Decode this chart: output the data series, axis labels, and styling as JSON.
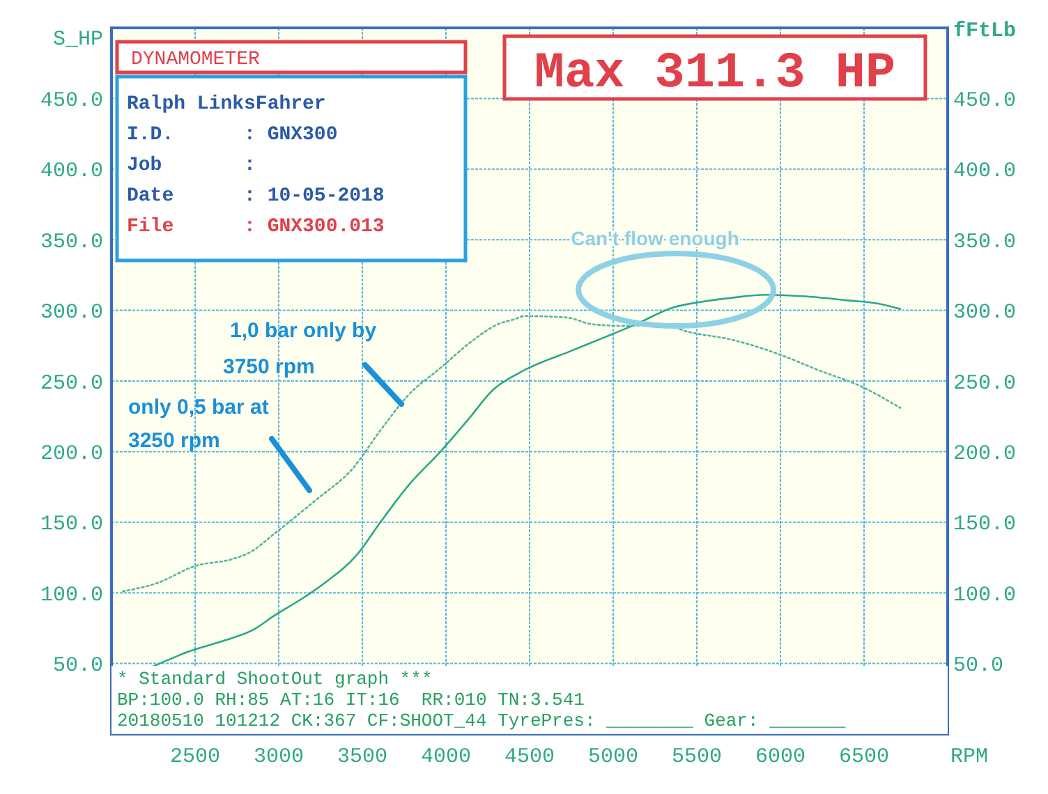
{
  "chart_data": {
    "type": "line",
    "xlabel": "RPM",
    "ylabel": "S_HP",
    "y2label": "fFtLb",
    "xlim": [
      2000,
      7000
    ],
    "xticks": [
      2500,
      3000,
      3500,
      4000,
      4500,
      5000,
      5500,
      6000,
      6500
    ],
    "ylim": [
      0,
      500
    ],
    "yticks": [
      {
        "value": 50,
        "label": "50.0"
      },
      {
        "value": 100,
        "label": "100.0"
      },
      {
        "value": 150,
        "label": "150.0"
      },
      {
        "value": 200,
        "label": "200.0"
      },
      {
        "value": 250,
        "label": "250.0"
      },
      {
        "value": 300,
        "label": "300.0"
      },
      {
        "value": 350,
        "label": "350.0"
      },
      {
        "value": 400,
        "label": "400.0"
      },
      {
        "value": 450,
        "label": "450.0"
      }
    ],
    "y2lim": [
      0,
      500
    ],
    "y2ticks": [
      {
        "value": 50,
        "label": "50.0"
      },
      {
        "value": 100,
        "label": "100.0"
      },
      {
        "value": 150,
        "label": "150.0"
      },
      {
        "value": 200,
        "label": "200.0"
      },
      {
        "value": 250,
        "label": "250.0"
      },
      {
        "value": 300,
        "label": "300.0"
      },
      {
        "value": 350,
        "label": "350.0"
      },
      {
        "value": 400,
        "label": "400.0"
      },
      {
        "value": 450,
        "label": "450.0"
      }
    ],
    "grid": true,
    "series": [
      {
        "color": "#2aa88a",
        "line_style": "solid",
        "x": [
          2250,
          2475,
          2667,
          2850,
          2975,
          3167,
          3275,
          3475,
          3608,
          3775,
          3975,
          4142,
          4275,
          4442,
          4742,
          4950,
          5133,
          5358,
          5525,
          5717,
          5908,
          6133,
          6408,
          6575,
          6717
        ],
        "values": [
          48,
          59,
          66,
          74,
          84,
          98,
          107,
          128,
          150,
          176,
          201,
          224,
          243,
          256,
          271,
          281,
          290,
          302,
          306,
          309,
          311,
          310,
          307,
          305,
          301
        ]
      },
      {
        "color": "#52b4a0",
        "line_style": "dotted",
        "x": [
          2067,
          2275,
          2500,
          2725,
          2833,
          2975,
          3225,
          3442,
          3608,
          3775,
          3975,
          4142,
          4308,
          4417,
          4467,
          4717,
          4883,
          5075,
          5300,
          5442,
          5717,
          5967,
          6242,
          6467,
          6717
        ],
        "values": [
          101,
          107,
          119,
          124,
          129,
          142,
          166,
          188,
          215,
          240,
          260,
          277,
          290,
          294,
          296,
          295,
          290,
          289,
          290,
          285,
          279,
          270,
          257,
          247,
          231
        ]
      }
    ],
    "annotations": [
      "DYNAMOMETER",
      "Ralph LinksFahrer",
      "I.D.      : GNX300",
      "Job       :",
      "Date      : 10-05-2018",
      "File      : GNX300.013",
      "Max 311.3 HP",
      "* Standard ShootOut graph ***",
      "BP:100.0 RH:85 AT:16 IT:16  RR:010 TN:3.541",
      "20180510 101212 CK:367 CF:SHOOT_44 TyrePres: ________ Gear: _______",
      "1,0 bar only by 3750 rpm",
      "only 0,5 bar at 3250 rpm",
      "Can't flow enough"
    ]
  }
}
